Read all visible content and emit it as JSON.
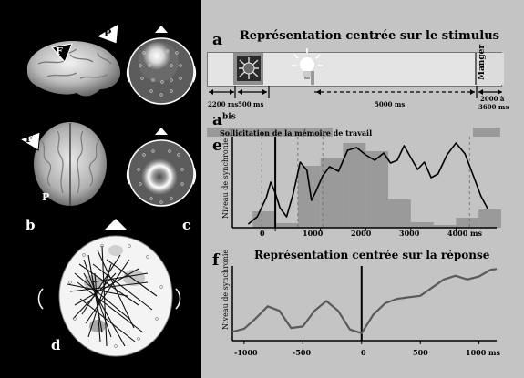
{
  "left_panels": {
    "brain_side": {
      "letter_F": "F",
      "letter_P": "P"
    },
    "brain_top": {
      "letter_F": "F",
      "letter_P": "P"
    },
    "panel_b": "b",
    "panel_c": "c",
    "panel_d": "d"
  },
  "panel_a": {
    "letter": "a",
    "title": "Représentation centrée sur le stimulus",
    "manger": "Manger",
    "durations": [
      "2200 ms",
      "500 ms",
      "5000 ms",
      "2000 à",
      "3600 ms"
    ]
  },
  "panel_abis": {
    "letter": "a",
    "sup": "bis",
    "label": "Sollicitation de la mémoire de travail"
  },
  "panel_e": {
    "letter": "e",
    "ylabel": "Niveau de synchronie",
    "xticks": [
      "0",
      "1000",
      "2000",
      "3000",
      "4000 ms"
    ],
    "bars": [
      {
        "start": -500,
        "end": 0,
        "value": 0.18
      },
      {
        "start": 0,
        "end": 500,
        "value": 0.05
      },
      {
        "start": 500,
        "end": 1000,
        "value": 0.68
      },
      {
        "start": 1000,
        "end": 1500,
        "value": 0.76
      },
      {
        "start": 1500,
        "end": 2000,
        "value": 0.93
      },
      {
        "start": 2000,
        "end": 2500,
        "value": 0.84
      },
      {
        "start": 2500,
        "end": 3000,
        "value": 0.31
      },
      {
        "start": 3000,
        "end": 3500,
        "value": 0.06
      },
      {
        "start": 3500,
        "end": 4000,
        "value": 0.03
      },
      {
        "start": 4000,
        "end": 4500,
        "value": 0.11
      },
      {
        "start": 4500,
        "end": 5000,
        "value": 0.2
      }
    ],
    "curve": [
      [
        -600,
        0.04
      ],
      [
        -400,
        0.12
      ],
      [
        -200,
        0.33
      ],
      [
        -100,
        0.5
      ],
      [
        0,
        0.38
      ],
      [
        100,
        0.22
      ],
      [
        250,
        0.12
      ],
      [
        400,
        0.38
      ],
      [
        550,
        0.72
      ],
      [
        700,
        0.63
      ],
      [
        800,
        0.3
      ],
      [
        900,
        0.4
      ],
      [
        1050,
        0.57
      ],
      [
        1200,
        0.67
      ],
      [
        1400,
        0.62
      ],
      [
        1600,
        0.85
      ],
      [
        1800,
        0.88
      ],
      [
        2000,
        0.8
      ],
      [
        2200,
        0.74
      ],
      [
        2400,
        0.82
      ],
      [
        2550,
        0.71
      ],
      [
        2700,
        0.74
      ],
      [
        2850,
        0.9
      ],
      [
        3000,
        0.77
      ],
      [
        3150,
        0.64
      ],
      [
        3300,
        0.72
      ],
      [
        3450,
        0.55
      ],
      [
        3600,
        0.59
      ],
      [
        3800,
        0.8
      ],
      [
        4000,
        0.93
      ],
      [
        4200,
        0.81
      ],
      [
        4400,
        0.55
      ],
      [
        4550,
        0.35
      ],
      [
        4700,
        0.21
      ]
    ]
  },
  "panel_f": {
    "letter": "f",
    "title": "Représentation centrée sur la réponse",
    "ylabel": "Niveau de synchronie",
    "xticks": [
      "-1000",
      "-500",
      "0",
      "500",
      "1000 ms"
    ],
    "curve": [
      [
        -1100,
        0.12
      ],
      [
        -1000,
        0.16
      ],
      [
        -900,
        0.3
      ],
      [
        -800,
        0.46
      ],
      [
        -700,
        0.4
      ],
      [
        -600,
        0.17
      ],
      [
        -500,
        0.19
      ],
      [
        -400,
        0.4
      ],
      [
        -300,
        0.53
      ],
      [
        -200,
        0.4
      ],
      [
        -100,
        0.15
      ],
      [
        0,
        0.1
      ],
      [
        100,
        0.35
      ],
      [
        200,
        0.5
      ],
      [
        300,
        0.56
      ],
      [
        400,
        0.58
      ],
      [
        500,
        0.6
      ],
      [
        600,
        0.71
      ],
      [
        700,
        0.82
      ],
      [
        800,
        0.87
      ],
      [
        900,
        0.82
      ],
      [
        1000,
        0.86
      ],
      [
        1100,
        0.95
      ],
      [
        1150,
        0.96
      ]
    ]
  }
}
